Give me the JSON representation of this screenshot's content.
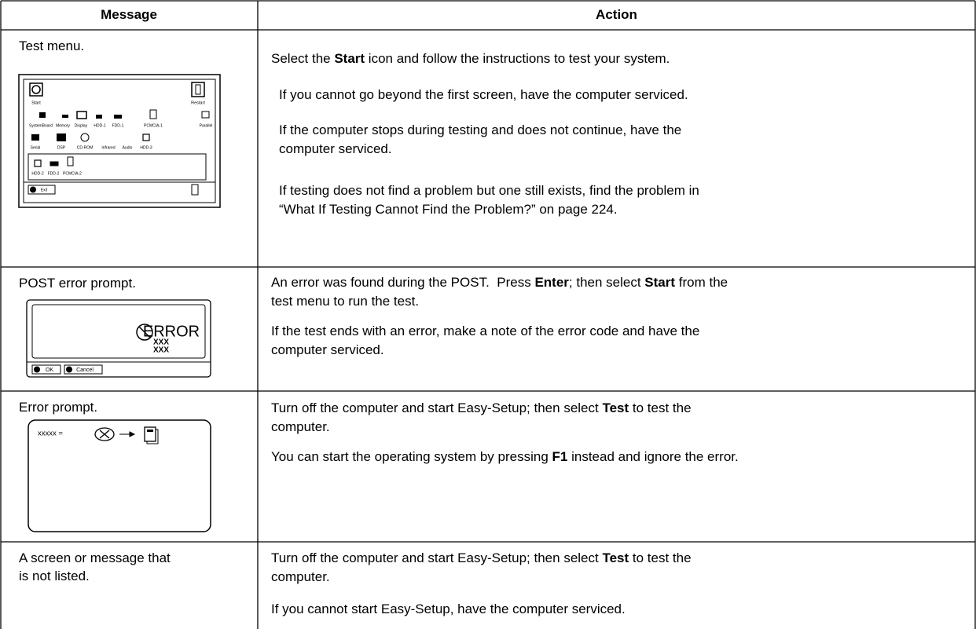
{
  "table": {
    "headers": [
      "Message",
      "Action"
    ],
    "rows": [
      {
        "message": [
          "Test menu."
        ],
        "figure": [
          "Start",
          "Restart",
          "SystemBoard",
          "Memory",
          "Display",
          "HDD-1",
          "FDD-1",
          "PCMCIA-1",
          "Parallel",
          "Serial",
          "DSP",
          "CD-ROM",
          "Infrared",
          "Audio",
          "HDD-3",
          "HDD-2",
          "FDD-2",
          "PCMCIA-2",
          "Exit"
        ],
        "action": [
          [
            [
              "Select the ",
              {
                "bold": "Start"
              },
              " icon and follow the instructions to test your system."
            ]
          ],
          [
            [
              "If you cannot go beyond the first screen, have the computer serviced."
            ]
          ],
          [
            [
              "If the computer stops during testing and does not continue, have the"
            ],
            [
              "computer serviced."
            ]
          ],
          [
            [
              "If testing does not find a problem but one still exists, find the problem in"
            ],
            [
              "“What If Testing Cannot Find the Problem?” on page 224."
            ]
          ]
        ]
      },
      {
        "message": [
          "POST error prompt."
        ],
        "figure": [
          "ERROR",
          "XXX",
          "XXX",
          "OK",
          "Cancel"
        ],
        "action": [
          [
            [
              "An error was found during the POST.  Press ",
              {
                "bold": "Enter"
              },
              "; then select ",
              {
                "bold": "Start"
              },
              " from the"
            ],
            [
              "test menu to run the test."
            ]
          ],
          [
            [
              "If the test ends with an error, make a note of the error code and have the"
            ],
            [
              "computer serviced."
            ]
          ]
        ]
      },
      {
        "message": [
          "Error prompt."
        ],
        "figure": [
          "xxxxx ="
        ],
        "action": [
          [
            [
              "Turn off the computer and start Easy-Setup; then select ",
              {
                "bold": "Test"
              },
              " to test the"
            ],
            [
              "computer."
            ]
          ],
          [
            [
              "You can start the operating system by pressing ",
              {
                "bold": "F1"
              },
              " instead and ignore the error."
            ]
          ]
        ]
      },
      {
        "message": [
          "A screen or message that",
          "is not listed."
        ],
        "action": [
          [
            [
              "Turn off the computer and start Easy-Setup; then select ",
              {
                "bold": "Test"
              },
              " to test the"
            ],
            [
              "computer."
            ]
          ],
          [
            [
              "If you cannot start Easy-Setup, have the computer serviced."
            ]
          ]
        ]
      }
    ]
  }
}
